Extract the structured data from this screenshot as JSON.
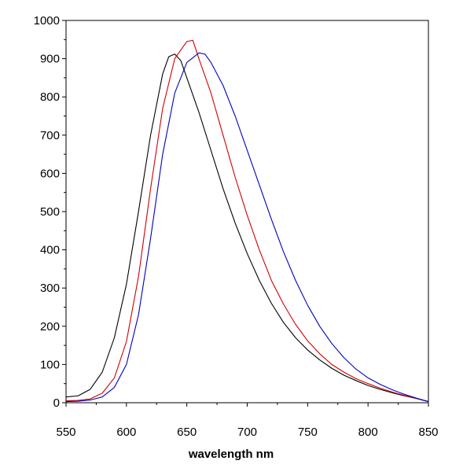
{
  "chart_data": {
    "type": "line",
    "title": "",
    "xlabel": "wavelength nm",
    "ylabel": "",
    "xlim": [
      550,
      850
    ],
    "ylim": [
      0,
      1000
    ],
    "x_ticks": [
      550,
      600,
      650,
      700,
      750,
      800,
      850
    ],
    "y_ticks": [
      0,
      100,
      200,
      300,
      400,
      500,
      600,
      700,
      800,
      900,
      1000
    ],
    "grid": false,
    "legend": "none",
    "series": [
      {
        "color": "#000000",
        "points": [
          [
            550,
            15
          ],
          [
            560,
            18
          ],
          [
            570,
            35
          ],
          [
            580,
            80
          ],
          [
            590,
            170
          ],
          [
            600,
            310
          ],
          [
            610,
            500
          ],
          [
            620,
            700
          ],
          [
            630,
            860
          ],
          [
            635,
            905
          ],
          [
            640,
            912
          ],
          [
            645,
            895
          ],
          [
            650,
            850
          ],
          [
            660,
            760
          ],
          [
            670,
            660
          ],
          [
            680,
            560
          ],
          [
            690,
            470
          ],
          [
            700,
            390
          ],
          [
            710,
            320
          ],
          [
            720,
            260
          ],
          [
            730,
            210
          ],
          [
            740,
            170
          ],
          [
            750,
            138
          ],
          [
            760,
            112
          ],
          [
            770,
            90
          ],
          [
            780,
            72
          ],
          [
            790,
            58
          ],
          [
            800,
            45
          ],
          [
            810,
            35
          ],
          [
            820,
            26
          ],
          [
            830,
            18
          ],
          [
            840,
            11
          ],
          [
            850,
            3
          ]
        ]
      },
      {
        "color": "#d00000",
        "points": [
          [
            550,
            5
          ],
          [
            560,
            6
          ],
          [
            570,
            10
          ],
          [
            580,
            25
          ],
          [
            590,
            65
          ],
          [
            600,
            160
          ],
          [
            610,
            330
          ],
          [
            620,
            560
          ],
          [
            630,
            770
          ],
          [
            640,
            900
          ],
          [
            650,
            945
          ],
          [
            655,
            948
          ],
          [
            660,
            900
          ],
          [
            670,
            810
          ],
          [
            680,
            700
          ],
          [
            690,
            590
          ],
          [
            700,
            490
          ],
          [
            710,
            400
          ],
          [
            720,
            320
          ],
          [
            730,
            258
          ],
          [
            740,
            205
          ],
          [
            750,
            162
          ],
          [
            760,
            128
          ],
          [
            770,
            100
          ],
          [
            780,
            80
          ],
          [
            790,
            63
          ],
          [
            800,
            50
          ],
          [
            810,
            38
          ],
          [
            820,
            28
          ],
          [
            830,
            19
          ],
          [
            840,
            11
          ],
          [
            850,
            3
          ]
        ]
      },
      {
        "color": "#0000c0",
        "points": [
          [
            550,
            3
          ],
          [
            560,
            4
          ],
          [
            570,
            7
          ],
          [
            580,
            15
          ],
          [
            590,
            40
          ],
          [
            600,
            100
          ],
          [
            610,
            230
          ],
          [
            620,
            430
          ],
          [
            630,
            650
          ],
          [
            640,
            810
          ],
          [
            650,
            890
          ],
          [
            660,
            915
          ],
          [
            665,
            912
          ],
          [
            670,
            890
          ],
          [
            680,
            830
          ],
          [
            690,
            750
          ],
          [
            700,
            660
          ],
          [
            710,
            570
          ],
          [
            720,
            480
          ],
          [
            730,
            395
          ],
          [
            740,
            320
          ],
          [
            750,
            255
          ],
          [
            760,
            200
          ],
          [
            770,
            155
          ],
          [
            780,
            118
          ],
          [
            790,
            88
          ],
          [
            800,
            65
          ],
          [
            810,
            48
          ],
          [
            820,
            34
          ],
          [
            830,
            22
          ],
          [
            840,
            12
          ],
          [
            850,
            3
          ]
        ]
      }
    ]
  }
}
